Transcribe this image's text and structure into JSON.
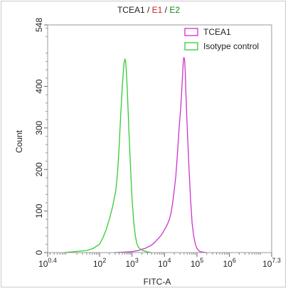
{
  "chart_data": {
    "type": "line",
    "title_parts": [
      {
        "text": "TCEA1",
        "color": "#222222"
      },
      {
        "text": " / ",
        "color": "#222222"
      },
      {
        "text": "E1",
        "color": "#d42020"
      },
      {
        "text": " / ",
        "color": "#222222"
      },
      {
        "text": "E2",
        "color": "#1a8a1a"
      }
    ],
    "xlabel": "FITC-A",
    "ylabel": "Count",
    "xscale": "log",
    "xlim": [
      0.4,
      7.3
    ],
    "ylim": [
      0,
      548
    ],
    "x_ticks": [
      {
        "base": "10",
        "exp": "0.4",
        "value": 0.4
      },
      {
        "base": "10",
        "exp": "2",
        "value": 2
      },
      {
        "base": "10",
        "exp": "3",
        "value": 3
      },
      {
        "base": "10",
        "exp": "4",
        "value": 4
      },
      {
        "base": "10",
        "exp": "5",
        "value": 5
      },
      {
        "base": "10",
        "exp": "6",
        "value": 6
      },
      {
        "base": "10",
        "exp": "7.3",
        "value": 7.3
      }
    ],
    "y_ticks": [
      0,
      100,
      200,
      300,
      400,
      548
    ],
    "legend_position": "top-right",
    "series": [
      {
        "name": "TCEA1",
        "color": "#cc33cc",
        "x": [
          2.45,
          3.0,
          3.1,
          3.2,
          3.3,
          3.4,
          3.5,
          3.6,
          3.7,
          3.8,
          3.9,
          4.0,
          4.05,
          4.1,
          4.15,
          4.2,
          4.25,
          4.3,
          4.35,
          4.4,
          4.45,
          4.5,
          4.55,
          4.58,
          4.6,
          4.62,
          4.64,
          4.66,
          4.7,
          4.75,
          4.8,
          4.85,
          4.9,
          4.95,
          5.0,
          5.05,
          5.1,
          5.2,
          5.3
        ],
        "y": [
          0,
          2,
          4,
          5,
          8,
          10,
          14,
          18,
          25,
          33,
          42,
          55,
          62,
          70,
          80,
          95,
          120,
          150,
          185,
          240,
          300,
          350,
          420,
          462,
          470,
          462,
          430,
          380,
          300,
          210,
          130,
          70,
          40,
          20,
          10,
          5,
          2,
          1,
          0
        ]
      },
      {
        "name": "Isotype control",
        "color": "#33cc33",
        "x": [
          0.9,
          1.6,
          1.8,
          2.0,
          2.1,
          2.2,
          2.3,
          2.4,
          2.5,
          2.55,
          2.6,
          2.65,
          2.7,
          2.75,
          2.78,
          2.8,
          2.83,
          2.86,
          2.9,
          2.95,
          3.0,
          3.05,
          3.1,
          3.15,
          3.2,
          3.3,
          3.45,
          3.6
        ],
        "y": [
          0,
          5,
          10,
          20,
          35,
          55,
          80,
          110,
          150,
          190,
          250,
          330,
          400,
          455,
          466,
          460,
          430,
          380,
          300,
          210,
          130,
          75,
          40,
          22,
          12,
          6,
          2,
          0
        ]
      }
    ]
  }
}
